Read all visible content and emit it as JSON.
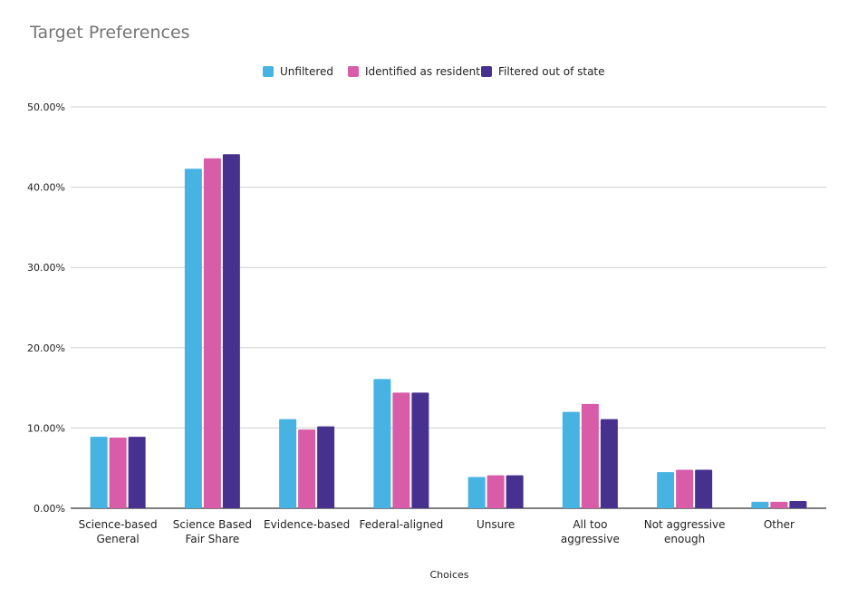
{
  "chart_data": {
    "type": "bar",
    "title": "Target Preferences",
    "xlabel": "Choices",
    "ylabel": "",
    "ylim": [
      0,
      50
    ],
    "yticks": [
      0,
      10,
      20,
      30,
      40,
      50
    ],
    "ytick_labels": [
      "0.00%",
      "10.00%",
      "20.00%",
      "30.00%",
      "40.00%",
      "50.00%"
    ],
    "grid": true,
    "legend_position": "top-center",
    "categories": [
      [
        "Science-based",
        "General"
      ],
      [
        "Science Based",
        "Fair Share"
      ],
      [
        "Evidence-based"
      ],
      [
        "Federal-aligned"
      ],
      [
        "Unsure"
      ],
      [
        "All too",
        "aggressive"
      ],
      [
        "Not aggressive",
        "enough"
      ],
      [
        "Other"
      ]
    ],
    "series": [
      {
        "name": "Unfiltered",
        "color": "#46B3E3",
        "values": [
          8.9,
          42.3,
          11.1,
          16.1,
          3.9,
          12.0,
          4.5,
          0.8
        ]
      },
      {
        "name": "Identified as resident",
        "color": "#D85CA8",
        "values": [
          8.8,
          43.6,
          9.8,
          14.4,
          4.1,
          13.0,
          4.8,
          0.8
        ]
      },
      {
        "name": "Filtered out of state",
        "color": "#47318F",
        "values": [
          8.9,
          44.1,
          10.2,
          14.4,
          4.1,
          11.1,
          4.8,
          0.9
        ]
      }
    ]
  }
}
